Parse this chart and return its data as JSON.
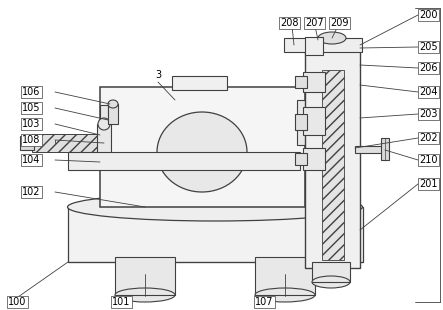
{
  "bg_color": "#ffffff",
  "line_color": "#404040",
  "figsize": [
    4.43,
    3.1
  ],
  "dpi": 100,
  "label_color": "#000000",
  "label_fs": 7.0,
  "lw": 0.8
}
